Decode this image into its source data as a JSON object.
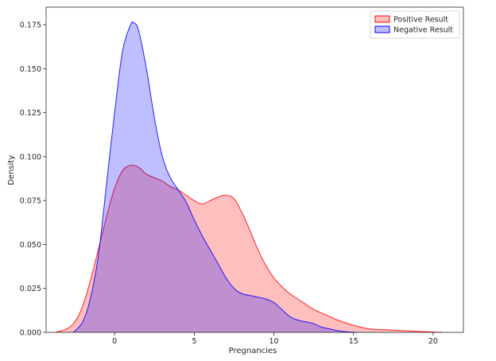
{
  "chart_data": {
    "type": "area",
    "title": "",
    "xlabel": "Pregnancies",
    "ylabel": "Density",
    "xlim": [
      -4.3,
      21.9
    ],
    "ylim": [
      0,
      0.185
    ],
    "x_ticks": [
      0,
      5,
      10,
      15,
      20
    ],
    "y_ticks": [
      0.0,
      0.025,
      0.05,
      0.075,
      0.1,
      0.125,
      0.15,
      0.175
    ],
    "x_tick_labels": [
      "0",
      "5",
      "10",
      "15",
      "20"
    ],
    "y_tick_labels": [
      "0.000",
      "0.025",
      "0.050",
      "0.075",
      "0.100",
      "0.125",
      "0.150",
      "0.175"
    ],
    "grid": false,
    "legend_position": "top-right",
    "series": [
      {
        "name": "Positive Result",
        "color": "#ff0000",
        "fill_opacity": 0.25,
        "x": [
          -3.7,
          -3.0,
          -2.5,
          -2.0,
          -1.5,
          -1.0,
          -0.5,
          0.0,
          0.5,
          1.0,
          1.5,
          2.0,
          2.5,
          3.0,
          3.5,
          4.0,
          4.5,
          5.0,
          5.5,
          6.0,
          6.5,
          7.0,
          7.5,
          8.0,
          8.5,
          9.0,
          9.5,
          10.0,
          10.5,
          11.0,
          11.5,
          12.0,
          12.5,
          13.0,
          13.5,
          14.0,
          15.0,
          16.0,
          17.0,
          18.0,
          19.0,
          20.0,
          20.6
        ],
        "y": [
          0.0,
          0.002,
          0.006,
          0.015,
          0.03,
          0.048,
          0.066,
          0.082,
          0.092,
          0.095,
          0.094,
          0.09,
          0.088,
          0.086,
          0.083,
          0.081,
          0.078,
          0.075,
          0.073,
          0.075,
          0.077,
          0.078,
          0.076,
          0.068,
          0.058,
          0.047,
          0.038,
          0.031,
          0.026,
          0.022,
          0.019,
          0.016,
          0.013,
          0.011,
          0.009,
          0.007,
          0.004,
          0.002,
          0.0015,
          0.001,
          0.0006,
          0.0002,
          0.0
        ]
      },
      {
        "name": "Negative Result",
        "color": "#0000ff",
        "fill_opacity": 0.25,
        "x": [
          -2.6,
          -2.0,
          -1.5,
          -1.0,
          -0.5,
          0.0,
          0.5,
          1.0,
          1.2,
          1.5,
          2.0,
          2.5,
          3.0,
          3.5,
          4.0,
          4.5,
          5.0,
          5.5,
          6.0,
          6.5,
          7.0,
          7.5,
          8.0,
          8.5,
          9.0,
          9.5,
          10.0,
          10.5,
          11.0,
          11.5,
          12.0,
          12.5,
          13.0,
          13.5,
          14.0,
          14.5,
          15.0,
          15.3
        ],
        "y": [
          0.0,
          0.006,
          0.02,
          0.045,
          0.085,
          0.125,
          0.16,
          0.175,
          0.176,
          0.172,
          0.15,
          0.122,
          0.1,
          0.088,
          0.081,
          0.074,
          0.064,
          0.055,
          0.047,
          0.039,
          0.031,
          0.025,
          0.022,
          0.021,
          0.02,
          0.019,
          0.017,
          0.013,
          0.009,
          0.007,
          0.006,
          0.005,
          0.003,
          0.002,
          0.001,
          0.0004,
          0.0001,
          0.0
        ]
      }
    ]
  }
}
